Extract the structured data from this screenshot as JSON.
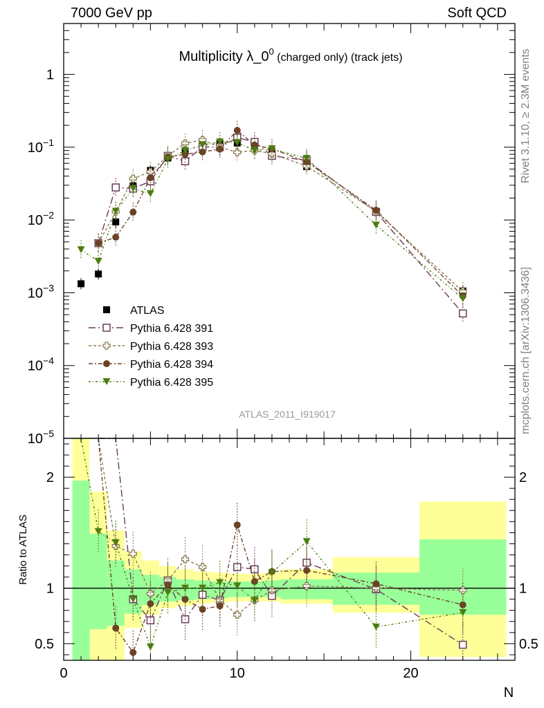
{
  "header": {
    "left": "7000 GeV pp",
    "right": "Soft QCD"
  },
  "side_labels": {
    "top": "Rivet 3.1.10, ≥ 2.3M events",
    "bottom": "mcplots.cern.ch [arXiv:1306.3436]"
  },
  "plot_title": {
    "main": "Multiplicity λ_0",
    "sup": "0",
    "small": " (charged only) (track jets)"
  },
  "analysis_label": "ATLAS_2011_I919017",
  "x_axis": {
    "label": "N",
    "range": [
      0,
      26
    ],
    "ticks": [
      "0",
      "10",
      "20"
    ]
  },
  "y_axis_main": {
    "scale": "log",
    "range": [
      1e-05,
      5
    ],
    "tick_labels": [
      "1",
      "10",
      "10",
      "10",
      "10",
      "10"
    ],
    "tick_sups": [
      "",
      "−1",
      "−2",
      "−3",
      "−4",
      "−5"
    ]
  },
  "y_axis_ratio": {
    "label": "Ratio to ATLAS",
    "range": [
      0.35,
      2.35
    ],
    "ticks": [
      "0.5",
      "1",
      "2"
    ]
  },
  "legend": [
    "ATLAS",
    "Pythia 6.428 391",
    "Pythia 6.428 393",
    "Pythia 6.428 394",
    "Pythia 6.428 395"
  ],
  "chart_data": {
    "type": "scatter",
    "x_label": "N",
    "y_scale": "log",
    "series": [
      {
        "name": "ATLAS",
        "color": "#000000",
        "marker": "filled-square",
        "x": [
          1,
          2,
          3,
          4,
          5,
          6,
          7,
          8,
          9,
          10,
          11,
          12,
          14,
          18,
          23
        ],
        "y": [
          0.00133,
          0.00181,
          0.0094,
          0.0295,
          0.048,
          0.071,
          0.089,
          0.107,
          0.112,
          0.114,
          0.101,
          0.083,
          0.054,
          0.0131,
          0.00106
        ]
      },
      {
        "name": "Pythia 6.428 391",
        "color": "#6b3a5a",
        "marker": "open-square",
        "dash": "10,4,2,4",
        "x": [
          2,
          3,
          4,
          5,
          6,
          7,
          8,
          9,
          10,
          11,
          12,
          14,
          18,
          23
        ],
        "y": [
          0.0048,
          0.028,
          0.027,
          0.034,
          0.076,
          0.064,
          0.101,
          0.1,
          0.135,
          0.118,
          0.076,
          0.066,
          0.0129,
          0.00052
        ]
      },
      {
        "name": "Pythia 6.428 393",
        "color": "#8b7d55",
        "marker": "open-cross",
        "dash": "4,3",
        "x": [
          2,
          3,
          4,
          5,
          6,
          7,
          8,
          9,
          10,
          11,
          12,
          14,
          18,
          23
        ],
        "y": [
          0.0048,
          0.013,
          0.037,
          0.046,
          0.076,
          0.113,
          0.126,
          0.1,
          0.085,
          0.09,
          0.081,
          0.055,
          0.0131,
          0.00104
        ]
      },
      {
        "name": "Pythia 6.428 394",
        "color": "#6b4226",
        "marker": "filled-circle",
        "dash": "6,3,2,3",
        "x": [
          2,
          3,
          4,
          5,
          6,
          7,
          8,
          9,
          10,
          11,
          12,
          14,
          18,
          23
        ],
        "y": [
          0.0048,
          0.0058,
          0.0128,
          0.038,
          0.073,
          0.08,
          0.086,
          0.094,
          0.17,
          0.107,
          0.095,
          0.063,
          0.0136,
          0.0009
        ]
      },
      {
        "name": "Pythia 6.428 395",
        "color": "#4d7c0f",
        "marker": "filled-triangle-down",
        "dash": "3,3,1,3",
        "x": [
          1,
          2,
          3,
          4,
          5,
          6,
          7,
          8,
          9,
          10,
          11,
          12,
          14,
          18,
          23
        ],
        "y": [
          0.0039,
          0.0027,
          0.0132,
          0.027,
          0.023,
          0.068,
          0.09,
          0.107,
          0.118,
          0.116,
          0.09,
          0.095,
          0.07,
          0.0085,
          0.00083
        ]
      }
    ],
    "ratio": {
      "band_edges": [
        0.5,
        1.5,
        2.5,
        3.5,
        4.5,
        5.5,
        6.5,
        7.5,
        8.5,
        9.5,
        10.5,
        11.5,
        12.5,
        15.5,
        20.5,
        25.5
      ],
      "green": [
        [
          0.35,
          1.97
        ],
        [
          0.63,
          1.49
        ],
        [
          0.66,
          1.25
        ],
        [
          0.77,
          1.17
        ],
        [
          0.85,
          1.12
        ],
        [
          0.88,
          1.1
        ],
        [
          0.89,
          1.08
        ],
        [
          0.9,
          1.07
        ],
        [
          0.91,
          1.06
        ],
        [
          0.92,
          1.06
        ],
        [
          0.92,
          1.06
        ],
        [
          0.92,
          1.07
        ],
        [
          0.9,
          1.08
        ],
        [
          0.85,
          1.14
        ],
        [
          0.76,
          1.44
        ]
      ],
      "yellow": [
        [
          0.35,
          2.35
        ],
        [
          0.35,
          1.87
        ],
        [
          0.35,
          1.52
        ],
        [
          0.64,
          1.33
        ],
        [
          0.76,
          1.25
        ],
        [
          0.82,
          1.2
        ],
        [
          0.84,
          1.17
        ],
        [
          0.86,
          1.15
        ],
        [
          0.87,
          1.14
        ],
        [
          0.88,
          1.13
        ],
        [
          0.88,
          1.13
        ],
        [
          0.88,
          1.14
        ],
        [
          0.86,
          1.17
        ],
        [
          0.78,
          1.28
        ],
        [
          0.38,
          1.78
        ]
      ],
      "series": [
        {
          "name": "Pythia 6.428 391",
          "y": [
            2.65,
            2.98,
            0.9,
            0.71,
            1.07,
            0.72,
            0.94,
            0.89,
            1.19,
            1.17,
            0.93,
            1.23,
            0.99,
            0.49
          ]
        },
        {
          "name": "Pythia 6.428 393",
          "y": [
            2.65,
            1.38,
            1.31,
            0.95,
            1.07,
            1.26,
            1.19,
            0.89,
            0.76,
            0.89,
            0.98,
            1.02,
            1.0,
            0.98
          ]
        },
        {
          "name": "Pythia 6.428 394",
          "y": [
            2.65,
            0.64,
            0.42,
            0.86,
            1.03,
            0.9,
            0.81,
            0.84,
            1.57,
            1.06,
            1.15,
            1.16,
            1.04,
            0.85
          ]
        },
        {
          "name": "Pythia 6.428 395",
          "x": [
            1,
            2,
            3,
            4,
            5,
            6,
            7,
            8,
            9,
            10,
            11,
            12,
            14,
            18,
            23
          ],
          "y": [
            2.9,
            1.51,
            1.41,
            0.9,
            0.47,
            0.96,
            1.0,
            1.0,
            1.05,
            1.02,
            0.89,
            1.14,
            1.42,
            0.65,
            0.78
          ]
        }
      ]
    }
  }
}
